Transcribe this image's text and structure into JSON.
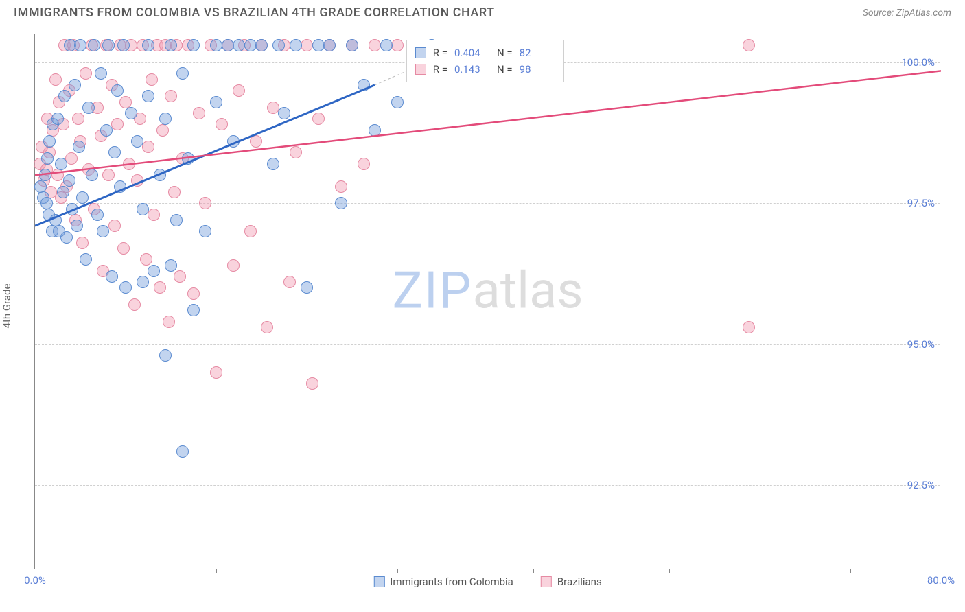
{
  "header": {
    "title": "IMMIGRANTS FROM COLOMBIA VS BRAZILIAN 4TH GRADE CORRELATION CHART",
    "source": "Source: ZipAtlas.com"
  },
  "chart": {
    "type": "scatter",
    "ylabel": "4th Grade",
    "xlim": [
      0,
      80
    ],
    "ylim": [
      91,
      100.5
    ],
    "axis_color": "#888888",
    "grid_color": "#d0d0d0",
    "background_color": "#ffffff",
    "tick_label_color": "#5b7fd6",
    "tick_fontsize": 15,
    "label_fontsize": 15,
    "yticks": [
      {
        "v": 92.5,
        "label": "92.5%"
      },
      {
        "v": 95.0,
        "label": "95.0%"
      },
      {
        "v": 97.5,
        "label": "97.5%"
      },
      {
        "v": 100.0,
        "label": "100.0%"
      }
    ],
    "xlabels": [
      {
        "v": 0,
        "label": "0.0%"
      },
      {
        "v": 80,
        "label": "80.0%"
      }
    ],
    "xticks_minor": [
      8,
      16,
      24,
      32,
      36,
      44,
      56,
      72
    ],
    "marker_radius": 9,
    "marker_stroke_width": 1
  },
  "series": {
    "blue": {
      "label": "Immigrants from Colombia",
      "fill": "rgba(120,160,220,0.45)",
      "stroke": "#5b8bd0",
      "trend_color": "#2e66c4",
      "trend_width": 3,
      "R": "0.404",
      "N": "82",
      "trend": {
        "x1": 0,
        "y1": 97.1,
        "x2": 30,
        "y2": 99.6
      },
      "points": [
        [
          0.5,
          97.8
        ],
        [
          0.7,
          97.6
        ],
        [
          0.9,
          98.0
        ],
        [
          1.0,
          97.5
        ],
        [
          1.1,
          98.3
        ],
        [
          1.2,
          97.3
        ],
        [
          1.3,
          98.6
        ],
        [
          1.5,
          97.0
        ],
        [
          1.6,
          98.9
        ],
        [
          1.8,
          97.2
        ],
        [
          2.0,
          99.0
        ],
        [
          2.1,
          97.0
        ],
        [
          2.3,
          98.2
        ],
        [
          2.5,
          97.7
        ],
        [
          2.6,
          99.4
        ],
        [
          2.8,
          96.9
        ],
        [
          3.0,
          97.9
        ],
        [
          3.1,
          100.3
        ],
        [
          3.3,
          97.4
        ],
        [
          3.5,
          99.6
        ],
        [
          3.7,
          97.1
        ],
        [
          3.9,
          98.5
        ],
        [
          4.0,
          100.3
        ],
        [
          4.2,
          97.6
        ],
        [
          4.5,
          96.5
        ],
        [
          4.7,
          99.2
        ],
        [
          5.0,
          98.0
        ],
        [
          5.2,
          100.3
        ],
        [
          5.5,
          97.3
        ],
        [
          5.8,
          99.8
        ],
        [
          6.0,
          97.0
        ],
        [
          6.3,
          98.8
        ],
        [
          6.5,
          100.3
        ],
        [
          6.8,
          96.2
        ],
        [
          7.0,
          98.4
        ],
        [
          7.3,
          99.5
        ],
        [
          7.5,
          97.8
        ],
        [
          7.8,
          100.3
        ],
        [
          8.0,
          96.0
        ],
        [
          8.5,
          99.1
        ],
        [
          9.0,
          98.6
        ],
        [
          9.5,
          97.4
        ],
        [
          9.5,
          96.1
        ],
        [
          10.0,
          100.3
        ],
        [
          10.0,
          99.4
        ],
        [
          10.5,
          96.3
        ],
        [
          11.0,
          98.0
        ],
        [
          11.5,
          99.0
        ],
        [
          11.5,
          94.8
        ],
        [
          12.0,
          100.3
        ],
        [
          12.0,
          96.4
        ],
        [
          12.5,
          97.2
        ],
        [
          13.0,
          99.8
        ],
        [
          13.0,
          93.1
        ],
        [
          13.5,
          98.3
        ],
        [
          14.0,
          100.3
        ],
        [
          14.0,
          95.6
        ],
        [
          15.0,
          97.0
        ],
        [
          16.0,
          100.3
        ],
        [
          16.0,
          99.3
        ],
        [
          17.0,
          100.3
        ],
        [
          17.5,
          98.6
        ],
        [
          18.0,
          100.3
        ],
        [
          19.0,
          100.3
        ],
        [
          20.0,
          100.3
        ],
        [
          21.0,
          98.2
        ],
        [
          21.5,
          100.3
        ],
        [
          22.0,
          99.1
        ],
        [
          23.0,
          100.3
        ],
        [
          24.0,
          96.0
        ],
        [
          25.0,
          100.3
        ],
        [
          26.0,
          100.3
        ],
        [
          27.0,
          97.5
        ],
        [
          28.0,
          100.3
        ],
        [
          29.0,
          99.6
        ],
        [
          30.0,
          98.8
        ],
        [
          31.0,
          100.3
        ],
        [
          32.0,
          99.3
        ],
        [
          35.0,
          100.3
        ]
      ]
    },
    "pink": {
      "label": "Brazilians",
      "fill": "rgba(240,150,175,0.42)",
      "stroke": "#e68aa3",
      "trend_color": "#e34b7a",
      "trend_width": 2.5,
      "R": "0.143",
      "N": "98",
      "trend": {
        "x1": 0,
        "y1": 98.0,
        "x2": 80,
        "y2": 99.85
      },
      "points": [
        [
          0.4,
          98.2
        ],
        [
          0.6,
          98.5
        ],
        [
          0.8,
          97.9
        ],
        [
          1.0,
          98.1
        ],
        [
          1.1,
          99.0
        ],
        [
          1.3,
          98.4
        ],
        [
          1.4,
          97.7
        ],
        [
          1.6,
          98.8
        ],
        [
          1.8,
          99.7
        ],
        [
          2.0,
          98.0
        ],
        [
          2.1,
          99.3
        ],
        [
          2.3,
          97.6
        ],
        [
          2.5,
          98.9
        ],
        [
          2.6,
          100.3
        ],
        [
          2.8,
          97.8
        ],
        [
          3.0,
          99.5
        ],
        [
          3.2,
          98.3
        ],
        [
          3.4,
          100.3
        ],
        [
          3.6,
          97.2
        ],
        [
          3.8,
          99.0
        ],
        [
          4.0,
          98.6
        ],
        [
          4.2,
          96.8
        ],
        [
          4.5,
          99.8
        ],
        [
          4.7,
          98.1
        ],
        [
          5.0,
          100.3
        ],
        [
          5.2,
          97.4
        ],
        [
          5.5,
          99.2
        ],
        [
          5.8,
          98.7
        ],
        [
          6.0,
          96.3
        ],
        [
          6.3,
          100.3
        ],
        [
          6.5,
          98.0
        ],
        [
          6.8,
          99.6
        ],
        [
          7.0,
          97.1
        ],
        [
          7.3,
          98.9
        ],
        [
          7.5,
          100.3
        ],
        [
          7.8,
          96.7
        ],
        [
          8.0,
          99.3
        ],
        [
          8.3,
          98.2
        ],
        [
          8.5,
          100.3
        ],
        [
          8.8,
          95.7
        ],
        [
          9.0,
          97.9
        ],
        [
          9.3,
          99.0
        ],
        [
          9.5,
          100.3
        ],
        [
          9.8,
          96.5
        ],
        [
          10.0,
          98.5
        ],
        [
          10.3,
          99.7
        ],
        [
          10.5,
          97.3
        ],
        [
          10.8,
          100.3
        ],
        [
          11.0,
          96.0
        ],
        [
          11.3,
          98.8
        ],
        [
          11.5,
          100.3
        ],
        [
          11.8,
          95.4
        ],
        [
          12.0,
          99.4
        ],
        [
          12.3,
          97.7
        ],
        [
          12.5,
          100.3
        ],
        [
          12.8,
          96.2
        ],
        [
          13.0,
          98.3
        ],
        [
          13.5,
          100.3
        ],
        [
          14.0,
          95.9
        ],
        [
          14.5,
          99.1
        ],
        [
          15.0,
          97.5
        ],
        [
          15.5,
          100.3
        ],
        [
          16.0,
          94.5
        ],
        [
          16.5,
          98.9
        ],
        [
          17.0,
          100.3
        ],
        [
          17.5,
          96.4
        ],
        [
          18.0,
          99.5
        ],
        [
          18.5,
          100.3
        ],
        [
          19.0,
          97.0
        ],
        [
          19.5,
          98.6
        ],
        [
          20.0,
          100.3
        ],
        [
          20.5,
          95.3
        ],
        [
          21.0,
          99.2
        ],
        [
          22.0,
          100.3
        ],
        [
          22.5,
          96.1
        ],
        [
          23.0,
          98.4
        ],
        [
          24.0,
          100.3
        ],
        [
          24.5,
          94.3
        ],
        [
          25.0,
          99.0
        ],
        [
          26.0,
          100.3
        ],
        [
          27.0,
          97.8
        ],
        [
          28.0,
          100.3
        ],
        [
          29.0,
          98.2
        ],
        [
          30.0,
          100.3
        ],
        [
          32.0,
          100.3
        ],
        [
          63.0,
          100.3
        ],
        [
          63.0,
          95.3
        ]
      ]
    }
  },
  "stats_box": {
    "left_pct": 41,
    "top_pct": 1,
    "rows": [
      {
        "series": "blue",
        "R_label": "R =",
        "N_label": "N ="
      },
      {
        "series": "pink",
        "R_label": "R =",
        "N_label": "N ="
      }
    ]
  },
  "watermark": {
    "part1": "ZIP",
    "part2": "atlas"
  }
}
